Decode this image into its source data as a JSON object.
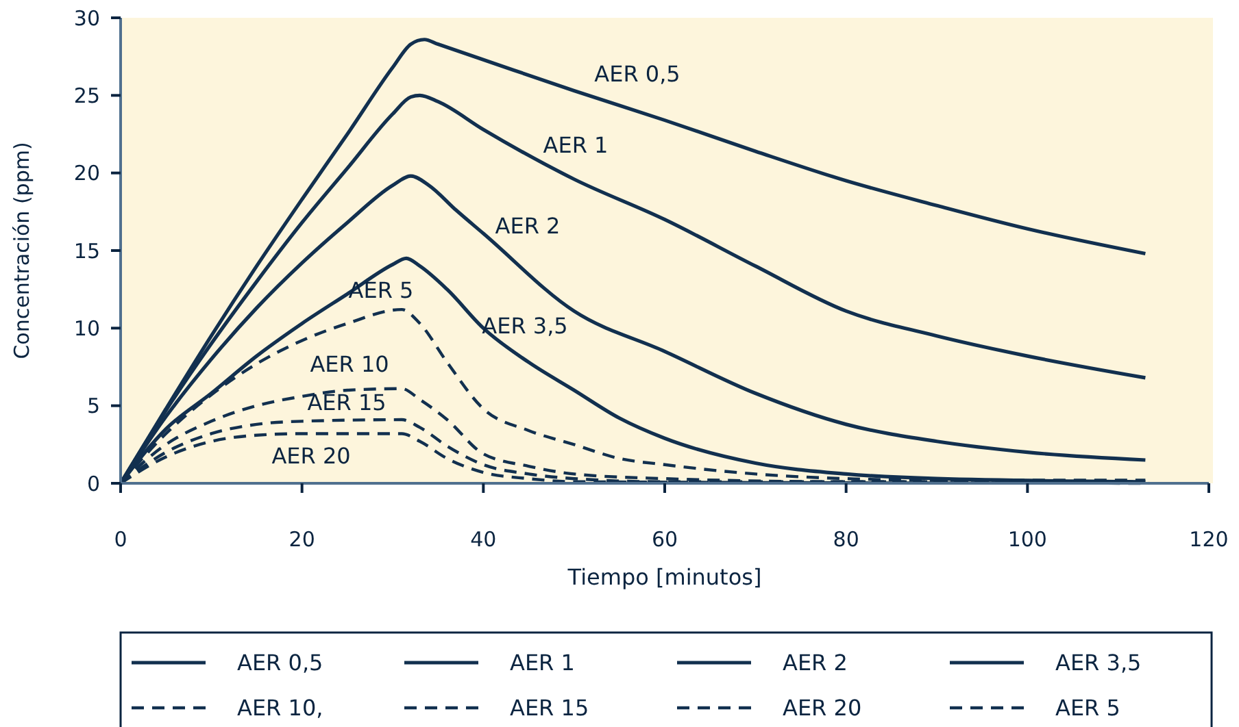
{
  "chart_data": {
    "type": "line",
    "xlabel": "Tiempo [minutos]",
    "ylabel": "Concentración (ppm)",
    "xlim": [
      0,
      120
    ],
    "xticks": [
      0,
      20,
      40,
      60,
      80,
      100,
      120
    ],
    "ylim": [
      0,
      30
    ],
    "yticks": [
      0,
      5,
      10,
      15,
      20,
      25,
      30
    ],
    "grid": false,
    "legend": "bottom",
    "marker": "none",
    "series": [
      {
        "name": "AER 0,5",
        "color": "#12304f",
        "line_style": "solid",
        "x": [
          0,
          5,
          10,
          15,
          20,
          25,
          30,
          32,
          33.5,
          35,
          40,
          50,
          60,
          70,
          80,
          90,
          100,
          113
        ],
        "values": [
          0,
          4.8,
          9.5,
          14,
          18.3,
          22.5,
          26.8,
          28.3,
          28.6,
          28.3,
          27.3,
          25.3,
          23.4,
          21.4,
          19.5,
          17.9,
          16.4,
          14.8
        ]
      },
      {
        "name": "AER 1",
        "color": "#12304f",
        "line_style": "solid",
        "x": [
          0,
          5,
          10,
          15,
          20,
          25,
          30,
          32,
          33,
          35,
          40,
          50,
          60,
          70,
          80,
          90,
          100,
          113
        ],
        "values": [
          0,
          4.7,
          9,
          13,
          16.8,
          20.3,
          23.8,
          24.9,
          25,
          24.6,
          22.8,
          19.6,
          17,
          14,
          11.1,
          9.5,
          8.2,
          6.8
        ]
      },
      {
        "name": "AER 2",
        "color": "#12304f",
        "line_style": "solid",
        "x": [
          0,
          5,
          10,
          15,
          20,
          25,
          30,
          32,
          34,
          37,
          40,
          50,
          60,
          70,
          80,
          90,
          100,
          113
        ],
        "values": [
          0,
          4.3,
          8,
          11.3,
          14.2,
          16.8,
          19.2,
          19.8,
          19.2,
          17.6,
          16.1,
          11.1,
          8.5,
          5.8,
          3.8,
          2.7,
          2,
          1.5
        ]
      },
      {
        "name": "AER 3,5",
        "color": "#12304f",
        "line_style": "solid",
        "x": [
          0,
          5,
          10,
          15,
          20,
          25,
          30,
          31.5,
          33,
          36,
          40,
          45,
          50,
          55,
          60,
          70,
          80,
          90,
          113
        ],
        "values": [
          0,
          3.5,
          5.8,
          8.2,
          10.3,
          12.2,
          14.1,
          14.5,
          14,
          12.5,
          10,
          7.8,
          6,
          4.2,
          2.9,
          1.3,
          0.6,
          0.3,
          0.1
        ]
      },
      {
        "name": "AER 10,",
        "color": "#12304f",
        "line_style": "dashed",
        "x": [
          0,
          5,
          10,
          15,
          20,
          25,
          31,
          33,
          36,
          40,
          45,
          50,
          60,
          80,
          112.6
        ],
        "values": [
          0,
          2.5,
          4,
          5,
          5.6,
          6,
          6.1,
          5.4,
          4.1,
          1.9,
          1.1,
          0.6,
          0.3,
          0.1,
          0.1
        ]
      },
      {
        "name": "AER 15",
        "color": "#12304f",
        "line_style": "dashed",
        "x": [
          0,
          5,
          10,
          15,
          20,
          31,
          33,
          36,
          40,
          45,
          50,
          60,
          112.2
        ],
        "values": [
          0,
          2,
          3.2,
          3.8,
          4,
          4.1,
          3.6,
          2.4,
          1.2,
          0.6,
          0.3,
          0.1,
          0.1
        ]
      },
      {
        "name": "AER 20",
        "color": "#12304f",
        "line_style": "dashed",
        "x": [
          0,
          5,
          10,
          15,
          20,
          31,
          33,
          36,
          40,
          45,
          50,
          113.4
        ],
        "values": [
          0,
          1.7,
          2.7,
          3.1,
          3.2,
          3.2,
          2.7,
          1.6,
          0.7,
          0.3,
          0.1,
          0
        ]
      },
      {
        "name": "AER 5",
        "color": "#12304f",
        "line_style": "dashed",
        "x": [
          0,
          5,
          10,
          15,
          20,
          25,
          31,
          33,
          36,
          40,
          45,
          50,
          55,
          60,
          70,
          80,
          90,
          113
        ],
        "values": [
          0,
          3.2,
          5.7,
          7.7,
          9.2,
          10.3,
          11.2,
          10.3,
          7.8,
          4.8,
          3.4,
          2.5,
          1.6,
          1.2,
          0.6,
          0.3,
          0.2,
          0.2
        ]
      }
    ],
    "annotations": [
      "AER 0,5",
      "AER 1",
      "AER 2",
      "AER 3,5",
      "AER 5",
      "AER 10",
      "AER 15",
      "AER 20"
    ]
  }
}
